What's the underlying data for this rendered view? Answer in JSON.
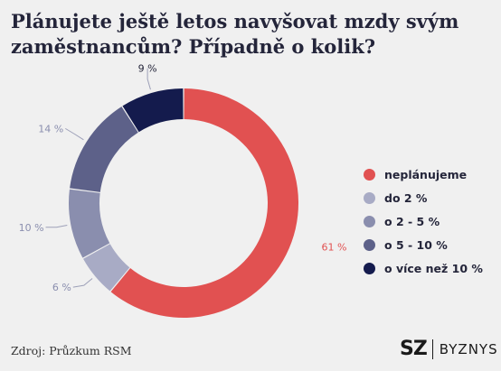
{
  "title": "Plánujete ještě letos navyšovat mzdy svým zaměstnancům? Případně o kolik?",
  "source": "Zdroj: Průzkum RSM",
  "brand": {
    "left": "SZ",
    "right": "BYZNYS"
  },
  "colors": {
    "background": "#f0f0f0",
    "text": "#24253a"
  },
  "chart_data": {
    "type": "pie",
    "variant": "donut",
    "legend_position": "right",
    "slices": [
      {
        "name": "neplánujeme",
        "value": 61,
        "label": "61 %",
        "color": "#e15151"
      },
      {
        "name": "do 2 %",
        "value": 6,
        "label": "6 %",
        "color": "#a8abc5"
      },
      {
        "name": "o 2 - 5 %",
        "value": 10,
        "label": "10 %",
        "color": "#8a8eae"
      },
      {
        "name": "o 5 - 10 %",
        "value": 14,
        "label": "14 %",
        "color": "#5d6189"
      },
      {
        "name": "o více než 10 %",
        "value": 9,
        "label": "9 %",
        "color": "#141b4d"
      }
    ]
  }
}
